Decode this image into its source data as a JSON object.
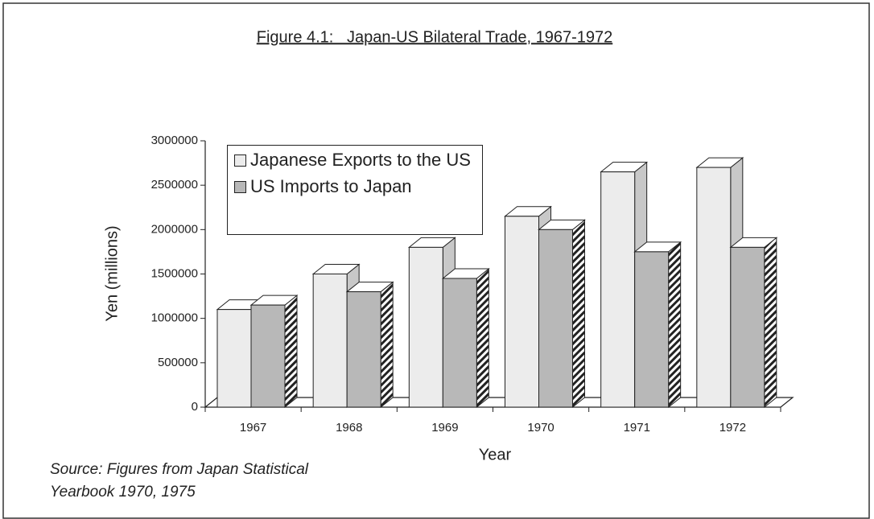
{
  "chart_data": {
    "type": "bar3d",
    "title": "Figure 4.1:   Japan-US Bilateral Trade, 1967-1972",
    "x_label": "Year",
    "y_label": "Yen (millions)",
    "source": "Source: Figures from Japan Statistical Yearbook 1970, 1975",
    "categories": [
      "1967",
      "1968",
      "1969",
      "1970",
      "1971",
      "1972"
    ],
    "series": [
      {
        "name": "Japanese Exports to the US",
        "color": "#ececec",
        "values": [
          1100000,
          1500000,
          1800000,
          2150000,
          2650000,
          2700000
        ]
      },
      {
        "name": "US Imports to Japan",
        "color": "#b8b8b8",
        "values": [
          1150000,
          1300000,
          1450000,
          2000000,
          1750000,
          1800000
        ]
      }
    ],
    "ylim": [
      0,
      3000000
    ],
    "yticks": [
      0,
      500000,
      1000000,
      1500000,
      2000000,
      2500000,
      3000000
    ],
    "legend": "top-left"
  }
}
